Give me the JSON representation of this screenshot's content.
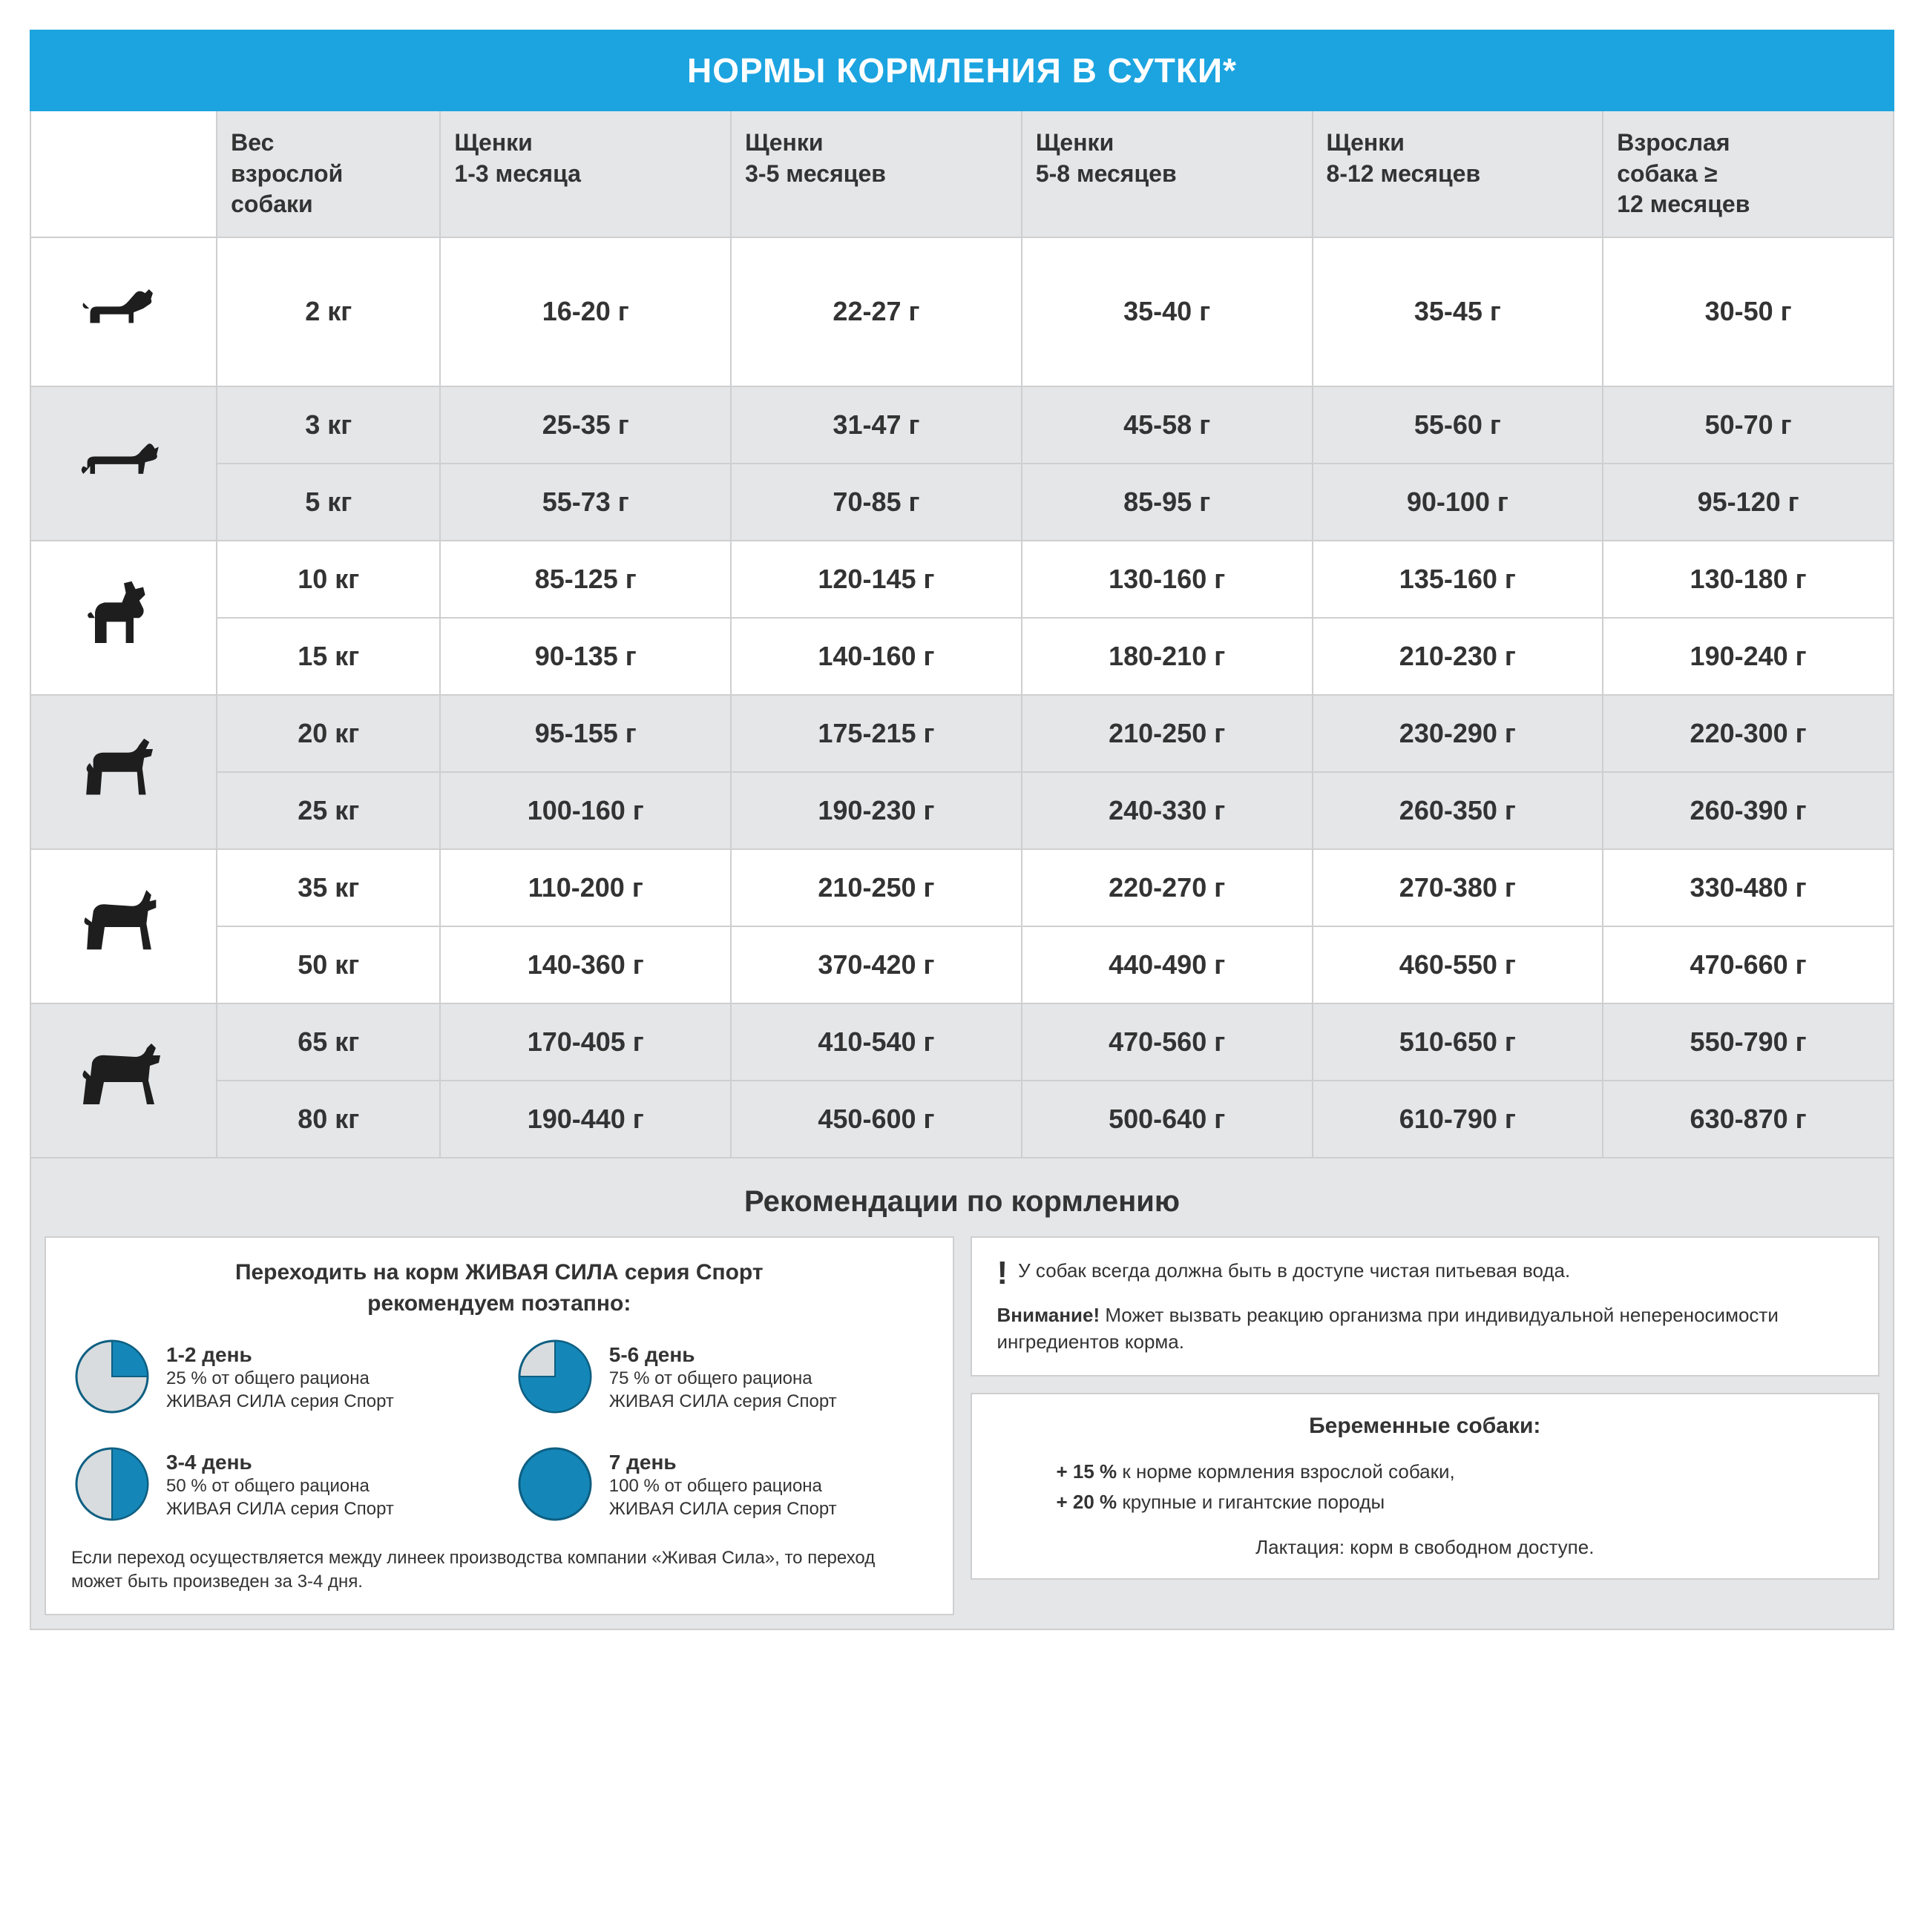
{
  "colors": {
    "header_bg": "#1ca4e0",
    "header_text": "#ffffff",
    "th_bg": "#e4e6e8",
    "row_gray": "#e4e6e8",
    "border": "#cfcfcf",
    "text": "#333333",
    "icon_fill": "#1e1e1e",
    "pie_fill": "#1487b8",
    "pie_empty": "#d8dcde",
    "pie_stroke": "#0e5f82"
  },
  "title": "НОРМЫ КОРМЛЕНИЯ В СУТКИ*",
  "table": {
    "columns": [
      "Вес взрослой собаки",
      "Щенки 1-3 месяца",
      "Щенки 3-5 месяцев",
      "Щенки 5-8 месяцев",
      "Щенки 8-12 месяцев",
      "Взрослая собака ≥ 12 месяцев"
    ],
    "groups": [
      {
        "icon": "tiny",
        "shade": "white",
        "rows": [
          {
            "weight": "2 кг",
            "vals": [
              "16-20 г",
              "22-27 г",
              "35-40 г",
              "35-45 г",
              "30-50 г"
            ]
          }
        ]
      },
      {
        "icon": "dachshund",
        "shade": "gray",
        "rows": [
          {
            "weight": "3 кг",
            "vals": [
              "25-35 г",
              "31-47 г",
              "45-58 г",
              "55-60 г",
              "50-70 г"
            ]
          },
          {
            "weight": "5 кг",
            "vals": [
              "55-73 г",
              "70-85 г",
              "85-95 г",
              "90-100 г",
              "95-120 г"
            ]
          }
        ]
      },
      {
        "icon": "bulldog",
        "shade": "white",
        "rows": [
          {
            "weight": "10 кг",
            "vals": [
              "85-125 г",
              "120-145 г",
              "130-160 г",
              "135-160 г",
              "130-180 г"
            ]
          },
          {
            "weight": "15 кг",
            "vals": [
              "90-135 г",
              "140-160 г",
              "180-210 г",
              "210-230 г",
              "190-240 г"
            ]
          }
        ]
      },
      {
        "icon": "medium",
        "shade": "gray",
        "rows": [
          {
            "weight": "20 кг",
            "vals": [
              "95-155 г",
              "175-215 г",
              "210-250 г",
              "230-290 г",
              "220-300 г"
            ]
          },
          {
            "weight": "25 кг",
            "vals": [
              "100-160 г",
              "190-230 г",
              "240-330 г",
              "260-350 г",
              "260-390 г"
            ]
          }
        ]
      },
      {
        "icon": "husky",
        "shade": "white",
        "rows": [
          {
            "weight": "35 кг",
            "vals": [
              "110-200 г",
              "210-250 г",
              "220-270 г",
              "270-380 г",
              "330-480 г"
            ]
          },
          {
            "weight": "50 кг",
            "vals": [
              "140-360 г",
              "370-420 г",
              "440-490 г",
              "460-550 г",
              "470-660 г"
            ]
          }
        ]
      },
      {
        "icon": "large",
        "shade": "gray",
        "rows": [
          {
            "weight": "65 кг",
            "vals": [
              "170-405 г",
              "410-540 г",
              "470-560 г",
              "510-650 г",
              "550-790 г"
            ]
          },
          {
            "weight": "80 кг",
            "vals": [
              "190-440 г",
              "450-600 г",
              "500-640 г",
              "610-790 г",
              "630-870 г"
            ]
          }
        ]
      }
    ]
  },
  "reco": {
    "section_title": "Рекомендации по кормлению",
    "transition_title_l1": "Переходить на корм ЖИВАЯ СИЛА серия Спорт",
    "transition_title_l2": "рекомендуем поэтапно:",
    "pies": [
      {
        "day": "1-2 день",
        "pct": 25,
        "desc_l1": "25 % от общего рациона",
        "desc_l2": "ЖИВАЯ СИЛА серия Спорт"
      },
      {
        "day": "5-6 день",
        "pct": 75,
        "desc_l1": "75 % от общего рациона",
        "desc_l2": "ЖИВАЯ СИЛА серия Спорт"
      },
      {
        "day": "3-4 день",
        "pct": 50,
        "desc_l1": "50 % от общего рациона",
        "desc_l2": "ЖИВАЯ СИЛА серия Спорт"
      },
      {
        "day": "7 день",
        "pct": 100,
        "desc_l1": "100 % от общего рациона",
        "desc_l2": "ЖИВАЯ СИЛА серия Спорт"
      }
    ],
    "transition_note": "Если переход осуществляется между линеек производства компании «Живая Сила», то переход может быть произведен за 3-4 дня.",
    "water_note": "У собак всегда должна быть в доступе чистая питьевая вода.",
    "warning_bold": "Внимание!",
    "warning_text": " Может вызвать реакцию организма при индивидуальной непереносимости ингредиентов корма.",
    "pregnant_title": "Беременные собаки:",
    "pregnant_l1_bold": "+ 15 %",
    "pregnant_l1_rest": " к норме кормления взрослой собаки,",
    "pregnant_l2_bold": "+ 20 %",
    "pregnant_l2_rest": " крупные и гигантские породы",
    "lactation": "Лактация: корм в свободном доступе."
  }
}
